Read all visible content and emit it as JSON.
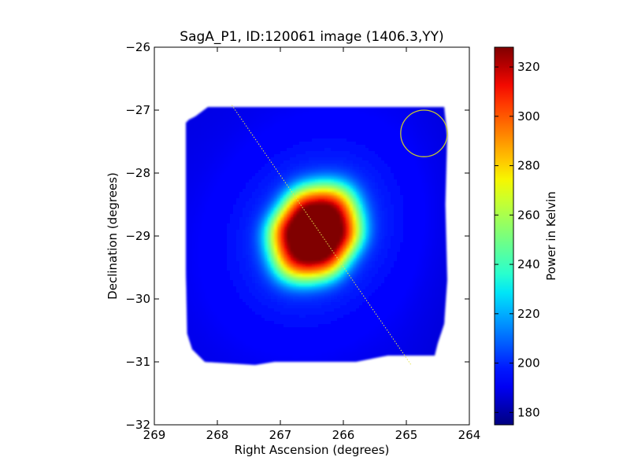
{
  "chart_data": [
    {
      "type": "heatmap",
      "title": "SagA_P1, ID:120061 image (1406.3,YY)",
      "xlabel": "Right Ascension (degrees)",
      "ylabel": "Declination (degrees)",
      "xlim": [
        269,
        264
      ],
      "ylim": [
        -32,
        -26
      ],
      "x_inverted": true,
      "x_ticks": [
        269,
        268,
        267,
        266,
        265,
        264
      ],
      "y_ticks": [
        -26,
        -27,
        -28,
        -29,
        -30,
        -31,
        -32
      ],
      "x_tick_labels": [
        "269",
        "268",
        "267",
        "266",
        "265",
        "264"
      ],
      "y_tick_labels": [
        "−26",
        "−27",
        "−28",
        "−29",
        "−30",
        "−31",
        "−32"
      ],
      "colormap": "jet",
      "colorbar": {
        "label": "Power in Kelvin",
        "min": 175,
        "max": 328,
        "ticks": [
          180,
          200,
          220,
          240,
          260,
          280,
          300,
          320
        ],
        "tick_labels": [
          "180",
          "200",
          "220",
          "240",
          "260",
          "280",
          "300",
          "320"
        ]
      },
      "map": {
        "background_level": 188,
        "edge_level": 196,
        "peak_level": 328,
        "peak_ra": 266.45,
        "peak_dec": -28.95,
        "coverage_polygon": [
          [
            268.15,
            -26.95
          ],
          [
            266.0,
            -26.95
          ],
          [
            264.4,
            -26.95
          ],
          [
            264.35,
            -27.4
          ],
          [
            264.38,
            -28.5
          ],
          [
            264.35,
            -29.7
          ],
          [
            264.4,
            -30.4
          ],
          [
            264.5,
            -30.7
          ],
          [
            264.55,
            -30.9
          ],
          [
            265.3,
            -30.9
          ],
          [
            265.8,
            -31.0
          ],
          [
            266.25,
            -31.0
          ],
          [
            267.1,
            -31.0
          ],
          [
            267.4,
            -31.05
          ],
          [
            268.2,
            -31.0
          ],
          [
            268.4,
            -30.8
          ],
          [
            268.48,
            -30.55
          ],
          [
            268.5,
            -29.5
          ],
          [
            268.5,
            -28.0
          ],
          [
            268.5,
            -27.2
          ],
          [
            268.45,
            -27.15
          ],
          [
            268.35,
            -27.1
          ]
        ]
      },
      "annotations": [
        {
          "shape": "line",
          "style": "dotted",
          "color": "#e6e64c",
          "ra": [
            267.77,
            264.93
          ],
          "dec": [
            -26.92,
            -31.04
          ]
        },
        {
          "shape": "circle",
          "color": "#c8c832",
          "ra": 264.72,
          "dec": -27.37,
          "radius_deg": 0.37
        }
      ]
    }
  ]
}
